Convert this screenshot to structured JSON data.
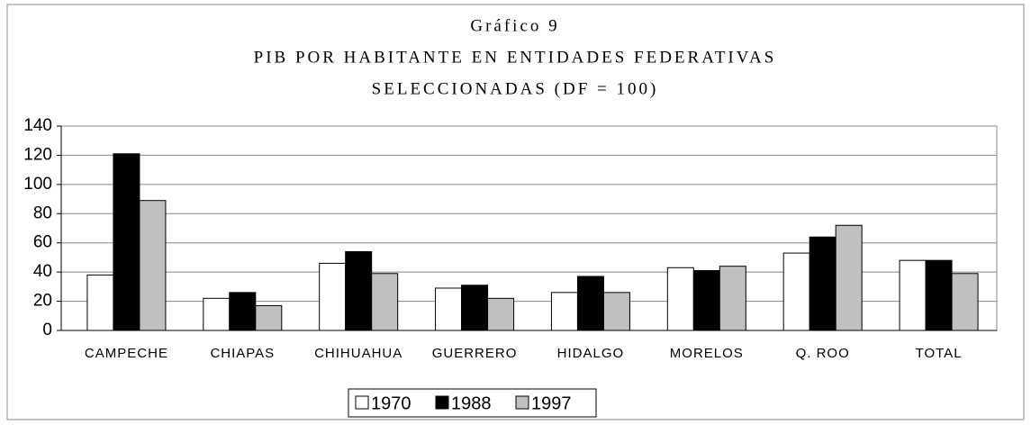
{
  "chart_data": {
    "type": "bar",
    "title": "Gráfico 9",
    "subtitle": [
      "PIB POR HABITANTE EN ENTIDADES FEDERATIVAS",
      "SELECCIONADAS (DF = 100)"
    ],
    "categories": [
      "CAMPECHE",
      "CHIAPAS",
      "CHIHUAHUA",
      "GUERRERO",
      "HIDALGO",
      "MORELOS",
      "Q. ROO",
      "TOTAL"
    ],
    "series": [
      {
        "name": "1970",
        "color": "#ffffff",
        "values": [
          38,
          22,
          46,
          29,
          26,
          43,
          53,
          48
        ]
      },
      {
        "name": "1988",
        "color": "#000000",
        "values": [
          121,
          26,
          54,
          31,
          37,
          41,
          64,
          48
        ]
      },
      {
        "name": "1997",
        "color": "#c0c0c0",
        "values": [
          89,
          17,
          39,
          22,
          26,
          44,
          72,
          39
        ]
      }
    ],
    "ylim": [
      0,
      140
    ],
    "yticks": [
      0,
      20,
      40,
      60,
      80,
      100,
      120,
      140
    ],
    "grid": true,
    "legend": "bottom"
  }
}
